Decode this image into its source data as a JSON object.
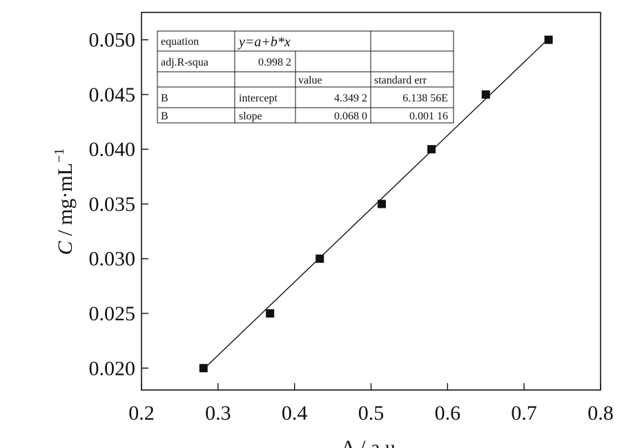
{
  "chart_data": {
    "type": "scatter",
    "xlabel": "A / a.u.",
    "ylabel_italic": "C",
    "ylabel_rest": " / mg·mL",
    "ylabel_sup": "−1",
    "xlim": [
      0.2,
      0.8
    ],
    "ylim": [
      0.018,
      0.0525
    ],
    "x_ticks": [
      0.2,
      0.3,
      0.4,
      0.5,
      0.6,
      0.7,
      0.8
    ],
    "x_tick_labels": [
      "0.2",
      "0.3",
      "0.4",
      "0.5",
      "0.6",
      "0.7",
      "0.8"
    ],
    "y_ticks": [
      0.02,
      0.025,
      0.03,
      0.035,
      0.04,
      0.045,
      0.05
    ],
    "y_tick_labels": [
      "0.020",
      "0.025",
      "0.030",
      "0.035",
      "0.040",
      "0.045",
      "0.050"
    ],
    "grid": false,
    "points": [
      {
        "x": 0.281,
        "y": 0.02
      },
      {
        "x": 0.368,
        "y": 0.025
      },
      {
        "x": 0.433,
        "y": 0.03
      },
      {
        "x": 0.514,
        "y": 0.035
      },
      {
        "x": 0.579,
        "y": 0.04
      },
      {
        "x": 0.65,
        "y": 0.045
      },
      {
        "x": 0.732,
        "y": 0.05
      }
    ],
    "fit_line": {
      "x_start": 0.281,
      "y_start": 0.0199,
      "x_end": 0.732,
      "y_end": 0.0501
    },
    "fit_table": {
      "rows": [
        [
          "equation",
          "y=a+b*x",
          ""
        ],
        [
          "adj.R-squa",
          "0.998 2",
          "",
          ""
        ],
        [
          "",
          "",
          "value",
          "standard err"
        ],
        [
          "B",
          "intercept",
          "4.349 2",
          "6.138 56E"
        ],
        [
          "B",
          "slope",
          "0.068 0",
          "0.001 16"
        ]
      ]
    },
    "colors": {
      "marker": "#111111",
      "line": "#111111",
      "axis": "#111111"
    }
  }
}
